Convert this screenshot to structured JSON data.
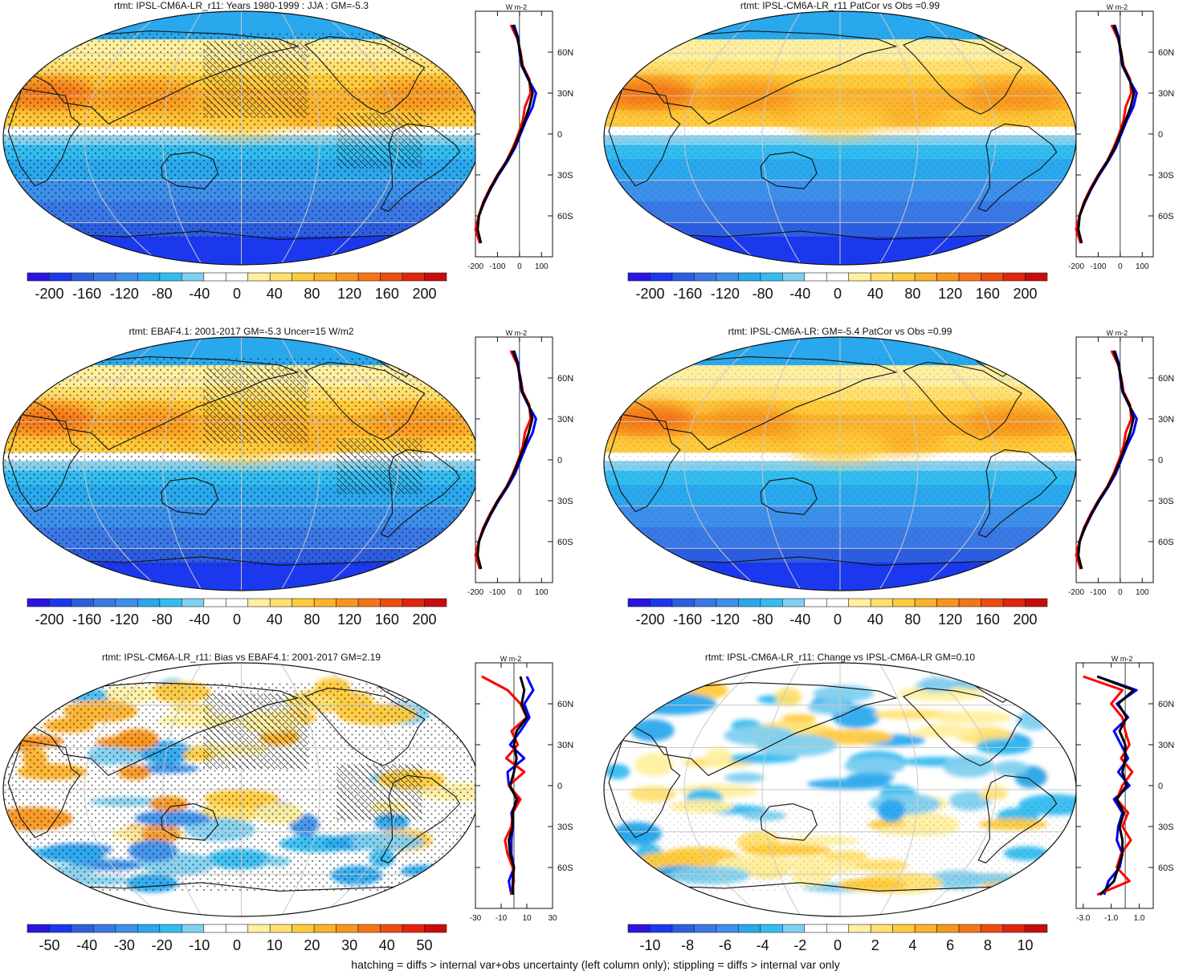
{
  "footer_note": "hatching = diffs > internal var+obs uncertainty (left column only); stippling = diffs > internal var only",
  "palettes": {
    "full": [
      "#2a14e0",
      "#1c38ee",
      "#2c5ee2",
      "#3a78e6",
      "#3c90ec",
      "#2aa8ee",
      "#33bcf0",
      "#7fd0f0",
      "#ffffff",
      "#ffffff",
      "#fff0a0",
      "#ffe070",
      "#ffcb3c",
      "#fcb22a",
      "#f8961c",
      "#f57614",
      "#ef4c10",
      "#e3240e",
      "#c80c0c"
    ]
  },
  "chart_data": [
    {
      "type": "heatmap",
      "title": "rtmt: IPSL-CM6A-LR_r11: Years 1980-1999 : JJA : GM=-5.3",
      "field": "climatology",
      "colorbar_ticks": [
        "-200",
        "-160",
        "-120",
        "-80",
        "-40",
        "0",
        "40",
        "80",
        "120",
        "160",
        "200"
      ],
      "hatching": true,
      "profile": {
        "unit": "W m-2",
        "x_ticks": [
          "-200",
          "-100",
          "0",
          "100"
        ],
        "xlim": [
          -200,
          150
        ],
        "y_ticks": [
          "60N",
          "30N",
          "0",
          "30S",
          "60S"
        ],
        "lat": [
          80,
          70,
          60,
          50,
          40,
          30,
          20,
          10,
          0,
          -10,
          -20,
          -30,
          -40,
          -50,
          -60,
          -70,
          -80
        ],
        "series": [
          {
            "color": "#0000ff",
            "values": [
              -25,
              -5,
              0,
              10,
              40,
              75,
              60,
              30,
              5,
              -20,
              -55,
              -95,
              -130,
              -160,
              -185,
              -195,
              -180
            ]
          },
          {
            "color": "#ff0000",
            "values": [
              -40,
              -10,
              5,
              15,
              45,
              50,
              25,
              15,
              -5,
              -30,
              -60,
              -100,
              -135,
              -165,
              -185,
              -200,
              -180
            ]
          },
          {
            "color": "#000000",
            "values": [
              -30,
              -8,
              3,
              12,
              42,
              60,
              45,
              25,
              0,
              -25,
              -58,
              -98,
              -132,
              -162,
              -184,
              -190,
              -175
            ]
          }
        ]
      }
    },
    {
      "type": "heatmap",
      "title": "rtmt: IPSL-CM6A-LR_r11 PatCor vs Obs =0.99",
      "field": "climatology",
      "colorbar_ticks": [
        "-200",
        "-160",
        "-120",
        "-80",
        "-40",
        "0",
        "40",
        "80",
        "120",
        "160",
        "200"
      ],
      "hatching": false,
      "profile": {
        "unit": "W m-2",
        "x_ticks": [
          "-200",
          "-100",
          "0",
          "100"
        ],
        "xlim": [
          -200,
          150
        ],
        "y_ticks": [
          "60N",
          "30N",
          "0",
          "30S",
          "60S"
        ],
        "lat": [
          80,
          70,
          60,
          50,
          40,
          30,
          20,
          10,
          0,
          -10,
          -20,
          -30,
          -40,
          -50,
          -60,
          -70,
          -80
        ],
        "series": [
          {
            "color": "#0000ff",
            "values": [
              -25,
              -5,
              0,
              10,
              40,
              75,
              60,
              30,
              5,
              -20,
              -55,
              -95,
              -130,
              -160,
              -185,
              -195,
              -180
            ]
          },
          {
            "color": "#ff0000",
            "values": [
              -40,
              -10,
              5,
              15,
              45,
              50,
              25,
              15,
              -5,
              -30,
              -60,
              -100,
              -135,
              -165,
              -185,
              -200,
              -180
            ]
          },
          {
            "color": "#000000",
            "values": [
              -30,
              -8,
              3,
              12,
              42,
              62,
              48,
              25,
              0,
              -25,
              -58,
              -98,
              -132,
              -162,
              -184,
              -190,
              -175
            ]
          }
        ]
      }
    },
    {
      "type": "heatmap",
      "title": "rtmt: EBAF4.1: 2001-2017 GM=-5.3 Uncer=15 W/m2",
      "field": "climatology",
      "colorbar_ticks": [
        "-200",
        "-160",
        "-120",
        "-80",
        "-40",
        "0",
        "40",
        "80",
        "120",
        "160",
        "200"
      ],
      "hatching": true,
      "profile": {
        "unit": "W m-2",
        "x_ticks": [
          "-200",
          "-100",
          "0",
          "100"
        ],
        "xlim": [
          -200,
          150
        ],
        "y_ticks": [
          "60N",
          "30N",
          "0",
          "30S",
          "60S"
        ],
        "lat": [
          80,
          70,
          60,
          50,
          40,
          30,
          20,
          10,
          0,
          -10,
          -20,
          -30,
          -40,
          -50,
          -60,
          -70,
          -80
        ],
        "series": [
          {
            "color": "#0000ff",
            "values": [
              -25,
              -5,
              0,
              10,
              40,
              75,
              60,
              30,
              5,
              -20,
              -55,
              -95,
              -130,
              -160,
              -185,
              -195,
              -180
            ]
          },
          {
            "color": "#ff0000",
            "values": [
              -40,
              -10,
              5,
              15,
              45,
              50,
              25,
              15,
              -5,
              -30,
              -60,
              -100,
              -135,
              -165,
              -185,
              -200,
              -180
            ]
          },
          {
            "color": "#000000",
            "values": [
              -30,
              -8,
              3,
              12,
              42,
              58,
              42,
              22,
              -2,
              -26,
              -58,
              -98,
              -132,
              -162,
              -184,
              -190,
              -175
            ]
          }
        ]
      }
    },
    {
      "type": "heatmap",
      "title": "rtmt: IPSL-CM6A-LR: GM=-5.4 PatCor vs Obs =0.99",
      "field": "climatology",
      "colorbar_ticks": [
        "-200",
        "-160",
        "-120",
        "-80",
        "-40",
        "0",
        "40",
        "80",
        "120",
        "160",
        "200"
      ],
      "hatching": false,
      "profile": {
        "unit": "W m-2",
        "x_ticks": [
          "-200",
          "-100",
          "0",
          "100"
        ],
        "xlim": [
          -200,
          150
        ],
        "y_ticks": [
          "60N",
          "30N",
          "0",
          "30S",
          "60S"
        ],
        "lat": [
          80,
          70,
          60,
          50,
          40,
          30,
          20,
          10,
          0,
          -10,
          -20,
          -30,
          -40,
          -50,
          -60,
          -70,
          -80
        ],
        "series": [
          {
            "color": "#0000ff",
            "values": [
              -25,
              -5,
              0,
              10,
              40,
              75,
              60,
              30,
              5,
              -20,
              -55,
              -95,
              -130,
              -160,
              -185,
              -195,
              -180
            ]
          },
          {
            "color": "#ff0000",
            "values": [
              -40,
              -10,
              5,
              15,
              45,
              50,
              25,
              15,
              -5,
              -30,
              -60,
              -100,
              -135,
              -165,
              -185,
              -200,
              -180
            ]
          },
          {
            "color": "#000000",
            "values": [
              -30,
              -8,
              3,
              12,
              42,
              60,
              45,
              24,
              0,
              -25,
              -58,
              -98,
              -132,
              -162,
              -184,
              -190,
              -175
            ]
          }
        ]
      }
    },
    {
      "type": "heatmap",
      "title": "rtmt: IPSL-CM6A-LR_r11: Bias vs EBAF4.1: 2001-2017 GM=2.19",
      "field": "bias",
      "colorbar_ticks": [
        "-50",
        "-40",
        "-30",
        "-20",
        "-10",
        "0",
        "10",
        "20",
        "30",
        "40",
        "50"
      ],
      "hatching": true,
      "profile": {
        "unit": "W m-2",
        "x_ticks": [
          "-30",
          "-10",
          "10",
          "30"
        ],
        "xlim": [
          -30,
          30
        ],
        "y_ticks": [
          "60N",
          "30N",
          "0",
          "30S",
          "60S"
        ],
        "lat": [
          80,
          70,
          60,
          50,
          40,
          30,
          20,
          10,
          0,
          -10,
          -20,
          -30,
          -40,
          -50,
          -60,
          -70,
          -80
        ],
        "series": [
          {
            "color": "#0000ff",
            "values": [
              10,
              15,
              8,
              12,
              5,
              -3,
              8,
              -5,
              -4,
              3,
              -2,
              -1,
              -2,
              -2,
              0,
              -4,
              -2
            ]
          },
          {
            "color": "#ff0000",
            "values": [
              -25,
              -5,
              5,
              10,
              -2,
              3,
              -6,
              8,
              -4,
              5,
              -1,
              -2,
              -7,
              -5,
              -1,
              0,
              -2
            ]
          },
          {
            "color": "#000000",
            "values": [
              5,
              8,
              6,
              10,
              2,
              0,
              2,
              0,
              -3,
              2,
              -1,
              -1,
              -4,
              -3,
              0,
              -1,
              -1
            ]
          }
        ]
      }
    },
    {
      "type": "heatmap",
      "title": "rtmt: IPSL-CM6A-LR_r11: Change vs IPSL-CM6A-LR GM=0.10",
      "field": "change",
      "colorbar_ticks": [
        "-10",
        "-8",
        "-6",
        "-4",
        "-2",
        "0",
        "2",
        "4",
        "6",
        "8",
        "10"
      ],
      "hatching": false,
      "profile": {
        "unit": "W m-2",
        "x_ticks": [
          "-3.0",
          "-1.0",
          "1.0"
        ],
        "xlim": [
          -3.5,
          2.0
        ],
        "y_ticks": [
          "60N",
          "30N",
          "0",
          "30S",
          "60S"
        ],
        "lat": [
          80,
          70,
          60,
          50,
          40,
          30,
          20,
          10,
          0,
          -10,
          -20,
          -30,
          -40,
          -50,
          -60,
          -70,
          -80
        ],
        "series": [
          {
            "color": "#0000ff",
            "values": [
              -2,
              0.8,
              -0.6,
              0.2,
              -0.8,
              -0.3,
              0.2,
              -0.5,
              0.3,
              -0.8,
              -0.2,
              -0.5,
              -0.6,
              -0.2,
              -0.4,
              -1.2,
              -1.5
            ]
          },
          {
            "color": "#ff0000",
            "values": [
              -3,
              -0.2,
              -1.0,
              -0.2,
              0,
              0.3,
              -0.3,
              0.5,
              -0.2,
              -0.6,
              0.2,
              -0.2,
              0.4,
              -0.3,
              -0.6,
              0.3,
              -2.0
            ]
          },
          {
            "color": "#000000",
            "values": [
              -2,
              0.6,
              -0.5,
              0.1,
              -0.4,
              0,
              0,
              -0.2,
              0.1,
              -0.6,
              -0.1,
              -0.4,
              -0.2,
              -0.2,
              -0.5,
              -0.8,
              -1.8
            ]
          }
        ]
      }
    }
  ]
}
